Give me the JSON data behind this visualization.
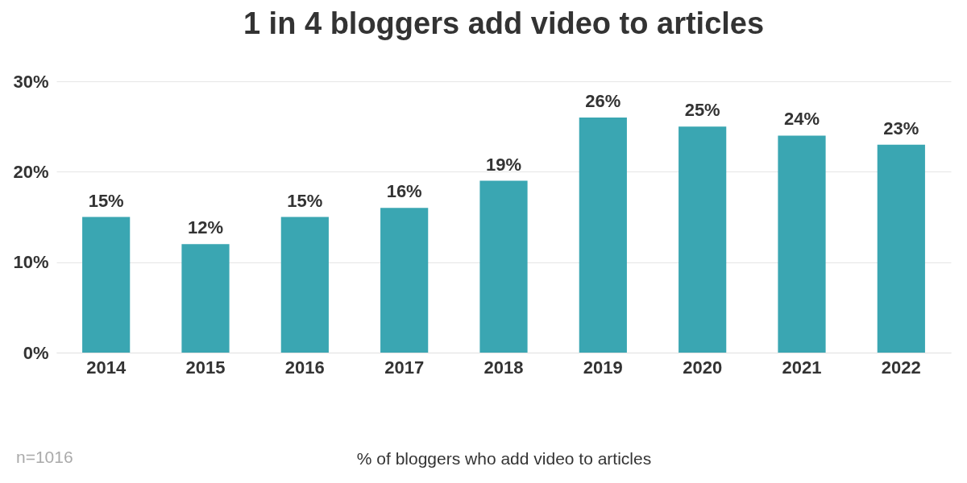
{
  "chart_data": {
    "type": "bar",
    "title": "1 in 4 bloggers add video to articles",
    "xlabel": "% of bloggers who add video to articles",
    "annotations": [
      "n=1016"
    ],
    "categories": [
      "2014",
      "2015",
      "2016",
      "2017",
      "2018",
      "2019",
      "2020",
      "2021",
      "2022"
    ],
    "values": [
      15,
      12,
      15,
      16,
      19,
      26,
      25,
      24,
      23
    ],
    "color": "#3aa6b2",
    "ylim": [
      0,
      30
    ],
    "yticks": [
      {
        "value": 0,
        "label": "0%"
      },
      {
        "value": 10,
        "label": "10%"
      },
      {
        "value": 20,
        "label": "20%"
      },
      {
        "value": 30,
        "label": "30%"
      }
    ],
    "value_labels": [
      "15%",
      "12%",
      "15%",
      "16%",
      "19%",
      "26%",
      "25%",
      "24%",
      "23%"
    ],
    "grid": "y"
  }
}
